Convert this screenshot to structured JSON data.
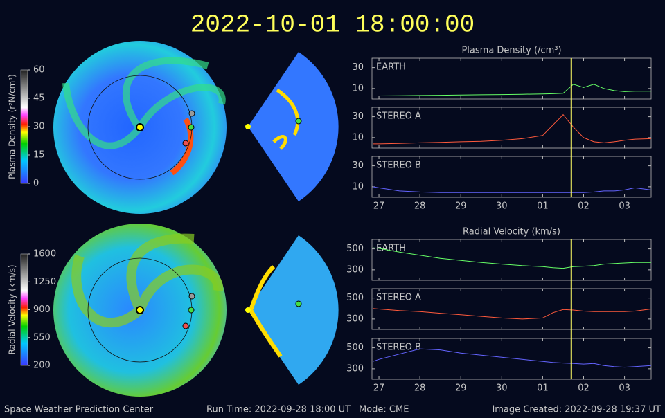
{
  "header": {
    "title": "2022-10-01 18:00:00"
  },
  "footer": {
    "org": "Space Weather Prediction Center",
    "run_time": "Run Time: 2022-09-28 18:00 UT",
    "mode": "Mode: CME",
    "created": "Image Created: 2022-09-28 19:37 UT"
  },
  "colorbars": [
    {
      "label": "Plasma Density (r²N/cm³)",
      "lim": [
        0,
        60
      ],
      "ticks": [
        0,
        15,
        30,
        45,
        60
      ]
    },
    {
      "label": "Radial Velocity (km/s)",
      "lim": [
        200,
        1600
      ],
      "ticks": [
        200,
        550,
        900,
        1250,
        1600
      ]
    }
  ],
  "chart_data": [
    {
      "type": "line",
      "title": "Plasma Density (/cm³)",
      "x": [
        -0.15,
        0,
        0.5,
        1,
        1.5,
        2,
        2.5,
        3,
        3.5,
        4,
        4.25,
        4.5,
        4.75,
        5,
        5.25,
        5.5,
        5.75,
        6,
        6.25,
        6.65
      ],
      "xlim": [
        -0.17,
        6.65
      ],
      "xticks": [
        {
          "value": 0,
          "label": "27"
        },
        {
          "value": 1,
          "label": "28"
        },
        {
          "value": 2,
          "label": "29"
        },
        {
          "value": 3,
          "label": "30"
        },
        {
          "value": 4,
          "label": "01"
        },
        {
          "value": 5,
          "label": "02"
        },
        {
          "value": 6,
          "label": "03"
        }
      ],
      "marker_x": 4.7,
      "ylim": [
        0,
        39
      ],
      "yticks": [
        10,
        30
      ],
      "series": [
        {
          "name": "EARTH",
          "color": "#66ff66",
          "values": [
            3,
            3,
            3.2,
            3.4,
            3.6,
            3.8,
            4,
            4.2,
            4.5,
            4.8,
            5,
            5.5,
            14,
            11,
            14,
            10,
            8,
            7,
            7.5,
            7.5
          ]
        },
        {
          "name": "STEREO A",
          "color": "#ff5a3c",
          "values": [
            4,
            4,
            4.5,
            5,
            5.5,
            6,
            6.5,
            7.5,
            9,
            12,
            22,
            32,
            20,
            10,
            6,
            5,
            6,
            7.5,
            8.5,
            9
          ]
        },
        {
          "name": "STEREO B",
          "color": "#6464ff",
          "values": [
            10,
            9,
            6,
            5,
            4.5,
            4.5,
            4.5,
            4.5,
            4.5,
            4.5,
            4.5,
            4.5,
            4.5,
            4.5,
            5,
            6,
            6,
            7,
            9,
            7
          ]
        }
      ]
    },
    {
      "type": "line",
      "title": "Radial Velocity (km/s)",
      "x": [
        -0.15,
        0,
        0.5,
        1,
        1.5,
        2,
        2.5,
        3,
        3.5,
        4,
        4.25,
        4.5,
        4.75,
        5,
        5.25,
        5.5,
        5.75,
        6,
        6.25,
        6.65
      ],
      "xlim": [
        -0.17,
        6.65
      ],
      "xticks": [
        {
          "value": 0,
          "label": "27"
        },
        {
          "value": 1,
          "label": "28"
        },
        {
          "value": 2,
          "label": "29"
        },
        {
          "value": 3,
          "label": "30"
        },
        {
          "value": 4,
          "label": "01"
        },
        {
          "value": 5,
          "label": "02"
        },
        {
          "value": 6,
          "label": "03"
        }
      ],
      "marker_x": 4.7,
      "ylim": [
        200,
        590
      ],
      "yticks": [
        300,
        500
      ],
      "series": [
        {
          "name": "EARTH",
          "color": "#66ff66",
          "values": [
            510,
            505,
            470,
            440,
            410,
            390,
            370,
            355,
            340,
            330,
            320,
            315,
            330,
            335,
            340,
            355,
            360,
            365,
            370,
            370
          ]
        },
        {
          "name": "STEREO A",
          "color": "#ff5a3c",
          "values": [
            400,
            395,
            380,
            370,
            355,
            340,
            325,
            310,
            300,
            310,
            360,
            390,
            385,
            375,
            370,
            370,
            370,
            370,
            375,
            395
          ]
        },
        {
          "name": "STEREO B",
          "color": "#6464ff",
          "values": [
            370,
            390,
            440,
            490,
            480,
            450,
            430,
            410,
            390,
            370,
            360,
            355,
            350,
            345,
            350,
            330,
            320,
            315,
            320,
            330
          ]
        }
      ]
    }
  ]
}
